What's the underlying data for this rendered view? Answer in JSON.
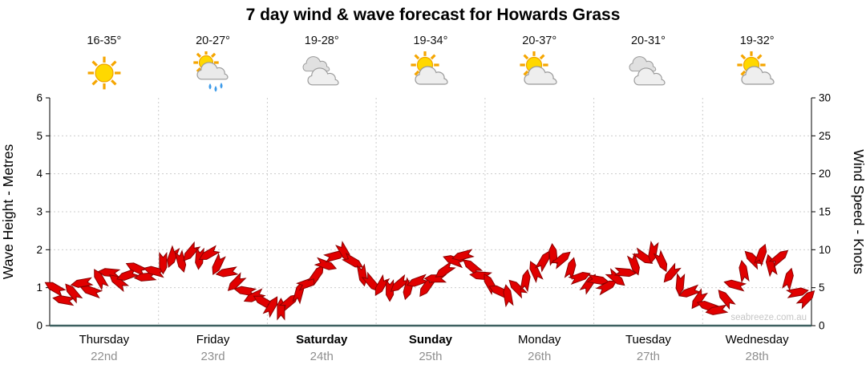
{
  "page": {
    "watermark": "seabreeze.com.au"
  },
  "days": [
    {
      "name": "Thursday",
      "date": "22nd",
      "temp": "16-35°",
      "icon": "sunny",
      "emphasis": false
    },
    {
      "name": "Friday",
      "date": "23rd",
      "temp": "20-27°",
      "icon": "sun-showers",
      "emphasis": false
    },
    {
      "name": "Saturday",
      "date": "24th",
      "temp": "19-28°",
      "icon": "cloudy",
      "emphasis": true
    },
    {
      "name": "Sunday",
      "date": "25th",
      "temp": "19-34°",
      "icon": "partly-cloudy",
      "emphasis": true
    },
    {
      "name": "Monday",
      "date": "26th",
      "temp": "20-37°",
      "icon": "partly-cloudy",
      "emphasis": false
    },
    {
      "name": "Tuesday",
      "date": "27th",
      "temp": "20-31°",
      "icon": "cloudy",
      "emphasis": false
    },
    {
      "name": "Wednesday",
      "date": "28th",
      "temp": "19-32°",
      "icon": "partly-cloudy",
      "emphasis": false
    }
  ],
  "chart_data": {
    "type": "wind-barbs",
    "title": "7 day wind & wave forecast for Howards Grass",
    "ylabel_left": "Wave Height - Metres",
    "ylabel_right": "Wind Speed - Knots",
    "ylim_left": [
      0,
      6
    ],
    "ylim_right": [
      0,
      30
    ],
    "yticks_left": [
      0,
      1,
      2,
      3,
      4,
      5,
      6
    ],
    "yticks_right": [
      0,
      5,
      10,
      15,
      20,
      25,
      30
    ],
    "grid": true,
    "legend": false,
    "x_categories": [
      "Thursday 22nd",
      "Friday 23rd",
      "Saturday 24th",
      "Sunday 25th",
      "Monday 26th",
      "Tuesday 27th",
      "Wednesday 28th"
    ],
    "series": [
      {
        "name": "Wind speed",
        "units": "knots",
        "samples_per_day": 12,
        "values": [
          5.0,
          3.4,
          4.4,
          5.6,
          4.6,
          6.2,
          7.0,
          5.8,
          6.6,
          7.6,
          6.4,
          7.2,
          8.2,
          9.0,
          8.4,
          9.6,
          8.8,
          9.4,
          8.0,
          7.0,
          5.6,
          4.6,
          3.8,
          3.2,
          2.6,
          2.2,
          3.2,
          4.4,
          5.6,
          6.8,
          8.0,
          9.2,
          9.6,
          8.4,
          6.6,
          5.6,
          5.2,
          4.6,
          5.4,
          4.8,
          5.8,
          5.0,
          6.2,
          7.2,
          8.6,
          9.2,
          7.8,
          6.6,
          5.6,
          4.6,
          4.0,
          5.0,
          6.0,
          7.2,
          8.6,
          9.4,
          8.8,
          7.6,
          6.4,
          5.6,
          6.0,
          5.2,
          6.2,
          7.0,
          8.0,
          9.0,
          9.6,
          8.4,
          6.8,
          5.4,
          4.4,
          3.4,
          2.6,
          2.0,
          3.6,
          5.4,
          7.2,
          8.8,
          9.4,
          8.0,
          9.0,
          6.2,
          4.4,
          3.6
        ],
        "directions_deg": [
          210,
          190,
          230,
          170,
          200,
          240,
          185,
          220,
          160,
          205,
          175,
          195,
          90,
          110,
          75,
          130,
          95,
          150,
          115,
          170,
          135,
          190,
          155,
          210,
          300,
          270,
          320,
          285,
          340,
          305,
          20,
          345,
          60,
          30,
          80,
          50,
          120,
          90,
          140,
          105,
          160,
          125,
          180,
          145,
          200,
          165,
          220,
          185,
          240,
          205,
          260,
          225,
          280,
          245,
          300,
          265,
          320,
          285,
          340,
          305,
          10,
          330,
          40,
          5,
          70,
          35,
          100,
          65,
          130,
          95,
          160,
          125,
          200,
          170,
          230,
          195,
          260,
          225,
          290,
          255,
          320,
          285,
          350,
          315
        ]
      }
    ],
    "colors": {
      "barb_fill": "#e10000",
      "barb_stroke": "#8b0000",
      "grid": "#cccccc",
      "axis": "#000000",
      "baseline": "#3d6060",
      "watermark": "#c6c6c6"
    }
  }
}
